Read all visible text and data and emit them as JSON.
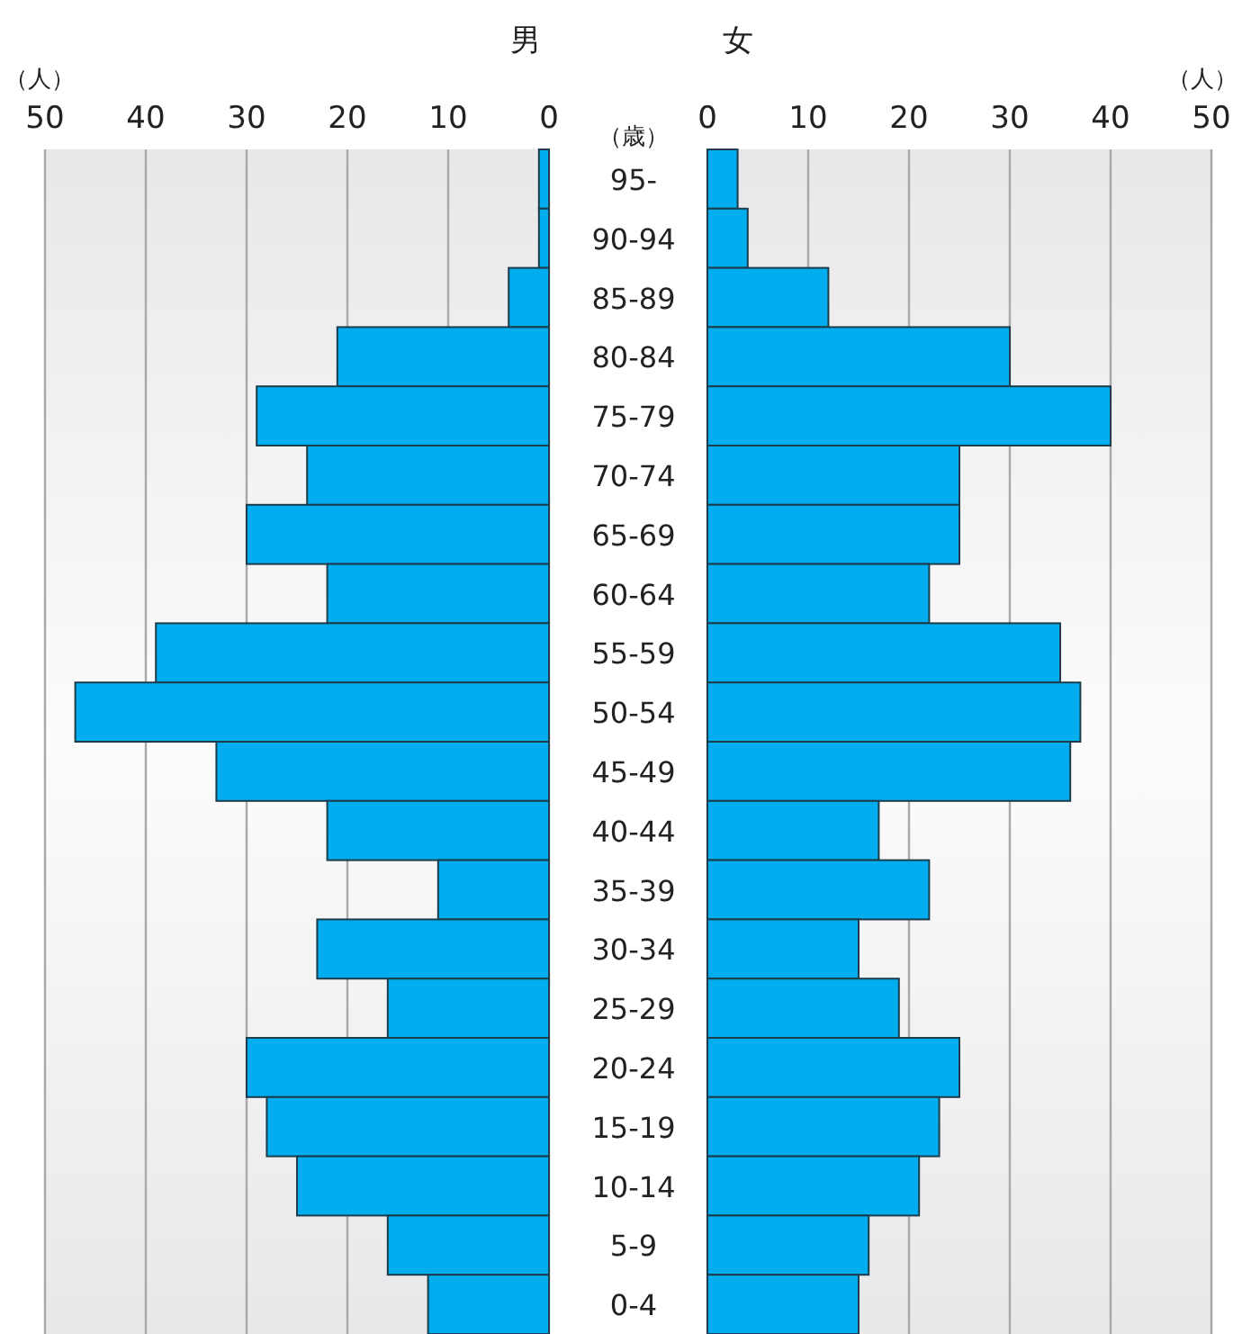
{
  "chart_data": [
    {
      "type": "bar",
      "orientation": "horizontal",
      "title": "男",
      "xlabel": "（人）",
      "color": "#00aeef",
      "grid": "x",
      "categories": [
        null,
        null,
        null,
        null,
        null,
        null,
        null,
        null,
        null,
        null,
        null,
        null,
        null,
        null,
        null,
        null,
        null,
        null,
        null,
        null
      ],
      "values": [
        1,
        1,
        4,
        21,
        29,
        24,
        30,
        22,
        39,
        47,
        33,
        22,
        11,
        23,
        16,
        30,
        28,
        25,
        16,
        12
      ],
      "xlim": [
        50,
        0
      ],
      "xticks": [
        50,
        40,
        30,
        20,
        10,
        0
      ]
    },
    {
      "type": "bar",
      "orientation": "horizontal",
      "title": "女",
      "xlabel": "（人）",
      "ylabel": "（歳）",
      "color": "#00aeef",
      "grid": "x",
      "categories": [
        "95-",
        "90-94",
        "85-89",
        "80-84",
        "75-79",
        "70-74",
        "65-69",
        "60-64",
        "55-59",
        "50-54",
        "45-49",
        "40-44",
        "35-39",
        "30-34",
        "25-29",
        "20-24",
        "15-19",
        "10-14",
        "5-9",
        "0-4"
      ],
      "values": [
        3,
        4,
        12,
        30,
        40,
        25,
        25,
        22,
        35,
        37,
        36,
        17,
        22,
        15,
        19,
        25,
        23,
        21,
        16,
        15
      ],
      "xlim": [
        0,
        50
      ],
      "xticks": [
        0,
        10,
        20,
        30,
        40,
        50
      ]
    }
  ]
}
